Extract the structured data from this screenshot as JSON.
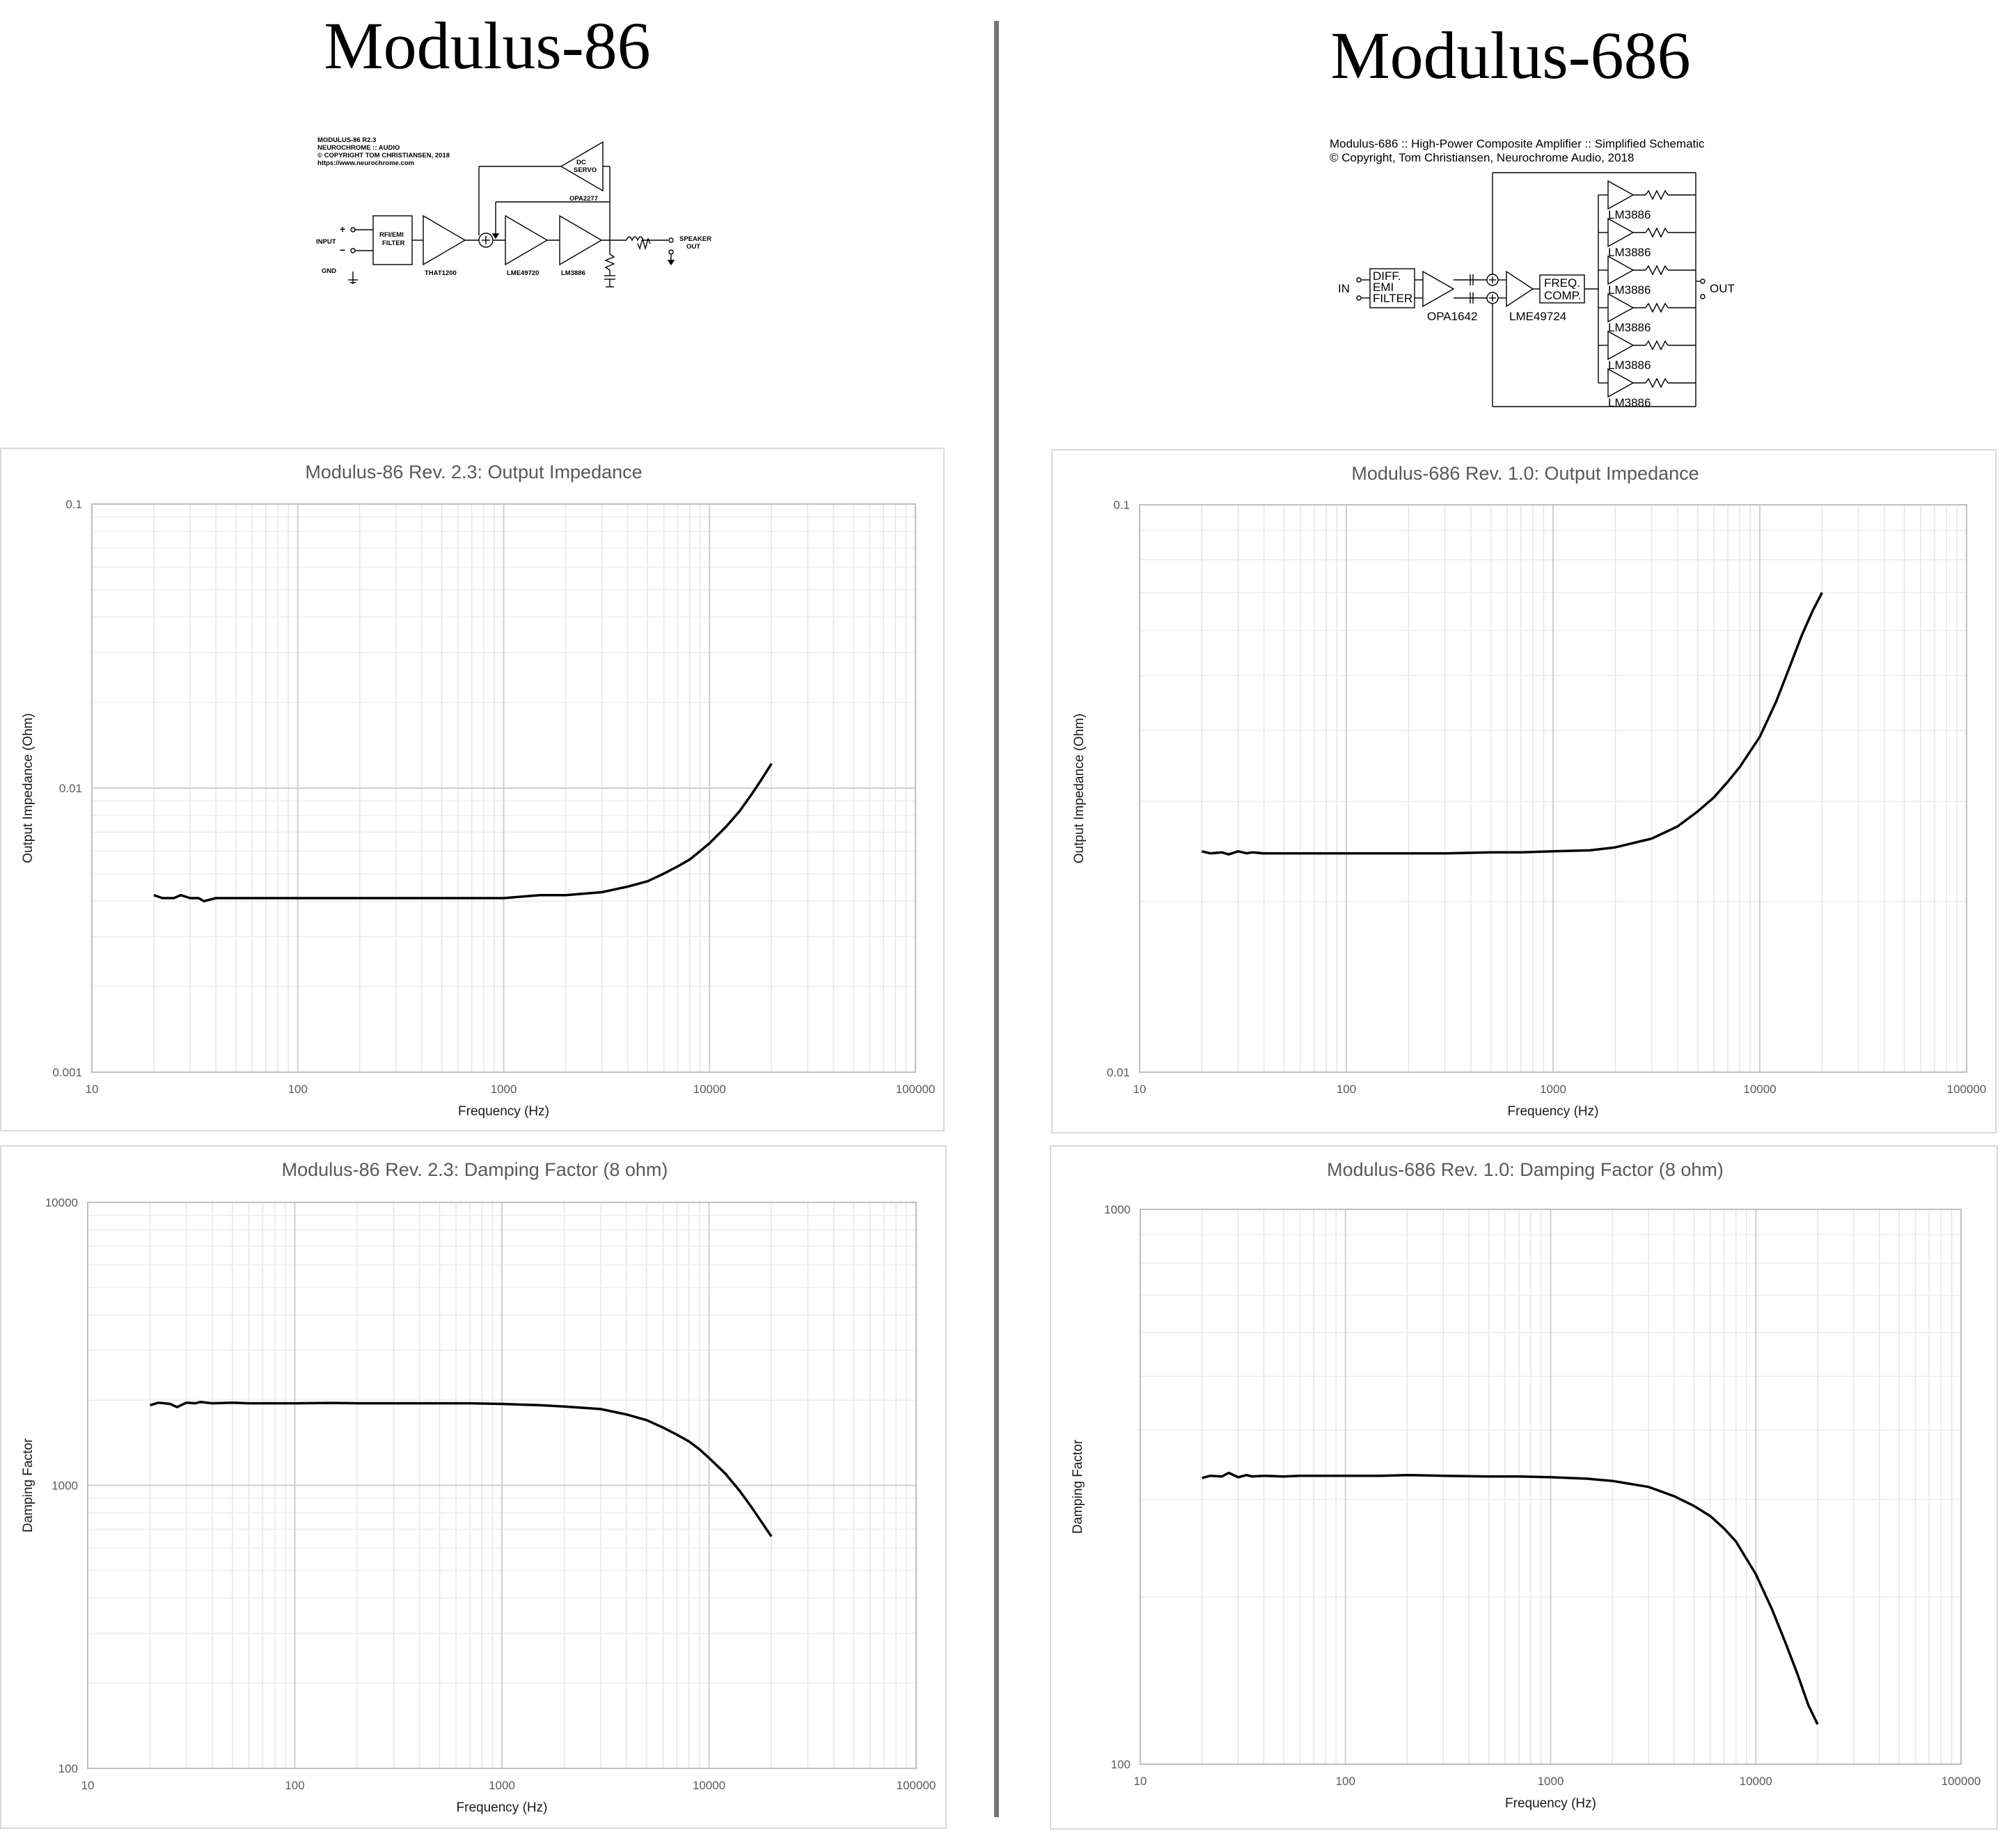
{
  "left": {
    "title": "Modulus-86",
    "schematic": {
      "header": [
        "MODULUS-86 R2.3",
        "NEUROCHROME :: AUDIO",
        "© COPYRIGHT TOM CHRISTIANSEN, 2018",
        "https://www.neurochrome.com"
      ],
      "input": "INPUT",
      "gnd": "GND",
      "plus": "+",
      "minus": "−",
      "filter": [
        "RFI/EMI",
        "FILTER"
      ],
      "stage1": "THAT1200",
      "stage2": "LME49720",
      "stage3": "LM3886",
      "servo": [
        "DC",
        "SERVO"
      ],
      "servo_part": "OPA2277",
      "out": [
        "SPEAKER",
        "OUT"
      ]
    }
  },
  "right": {
    "title": "Modulus-686",
    "schematic": {
      "header": [
        "Modulus-686 :: High-Power Composite Amplifier :: Simplified Schematic",
        "© Copyright, Tom Christiansen, Neurochrome Audio, 2018"
      ],
      "in": "IN",
      "filter": [
        "DIFF.",
        "EMI",
        "FILTER"
      ],
      "stage1": "OPA1642",
      "stage2": "LME49724",
      "freq": [
        "FREQ.",
        "COMP."
      ],
      "out": "OUT",
      "power": "LM3886"
    }
  },
  "chart_data": [
    {
      "type": "line",
      "title": "Modulus-86 Rev. 2.3: Output Impedance",
      "xlabel": "Frequency (Hz)",
      "ylabel": "Output Impedance (Ohm)",
      "xscale": "log",
      "yscale": "log",
      "xlim": [
        10,
        100000
      ],
      "ylim": [
        0.001,
        0.1
      ],
      "xticks": [
        "10",
        "100",
        "1000",
        "10000",
        "100000"
      ],
      "yticks": [
        "0.001",
        "0.01",
        "0.1"
      ],
      "grid": true,
      "x": [
        20,
        22,
        25,
        27,
        30,
        33,
        35,
        40,
        50,
        60,
        80,
        100,
        150,
        200,
        300,
        500,
        700,
        1000,
        1500,
        2000,
        3000,
        4000,
        5000,
        6000,
        7000,
        8000,
        9000,
        10000,
        12000,
        14000,
        16000,
        18000,
        20000
      ],
      "y": [
        0.0042,
        0.0041,
        0.0041,
        0.0042,
        0.0041,
        0.0041,
        0.004,
        0.0041,
        0.0041,
        0.0041,
        0.0041,
        0.0041,
        0.0041,
        0.0041,
        0.0041,
        0.0041,
        0.0041,
        0.0041,
        0.0042,
        0.0042,
        0.0043,
        0.0045,
        0.0047,
        0.005,
        0.0053,
        0.0056,
        0.006,
        0.0064,
        0.0073,
        0.0083,
        0.0095,
        0.0108,
        0.0122
      ]
    },
    {
      "type": "line",
      "title": "Modulus-686 Rev. 1.0: Output Impedance",
      "xlabel": "Frequency (Hz)",
      "ylabel": "Output Impedance (Ohm)",
      "xscale": "log",
      "yscale": "log",
      "xlim": [
        10,
        100000
      ],
      "ylim": [
        0.01,
        0.1
      ],
      "xticks": [
        "10",
        "100",
        "1000",
        "10000",
        "100000"
      ],
      "yticks": [
        "0.01",
        "0.1"
      ],
      "grid": true,
      "x": [
        20,
        22,
        25,
        27,
        30,
        33,
        35,
        40,
        50,
        60,
        80,
        100,
        150,
        200,
        300,
        500,
        700,
        1000,
        1500,
        2000,
        3000,
        4000,
        5000,
        6000,
        7000,
        8000,
        10000,
        12000,
        14000,
        16000,
        18000,
        20000
      ],
      "y": [
        0.0245,
        0.0243,
        0.0244,
        0.0242,
        0.0245,
        0.0243,
        0.0244,
        0.0243,
        0.0243,
        0.0243,
        0.0243,
        0.0243,
        0.0243,
        0.0243,
        0.0243,
        0.0244,
        0.0244,
        0.0245,
        0.0246,
        0.0249,
        0.0258,
        0.0271,
        0.0288,
        0.0305,
        0.0325,
        0.0345,
        0.039,
        0.045,
        0.052,
        0.059,
        0.065,
        0.07
      ]
    },
    {
      "type": "line",
      "title": "Modulus-86 Rev. 2.3: Damping Factor (8 ohm)",
      "xlabel": "Frequency (Hz)",
      "ylabel": "Damping Factor",
      "xscale": "log",
      "yscale": "log",
      "xlim": [
        10,
        100000
      ],
      "ylim": [
        100,
        10000
      ],
      "xticks": [
        "10",
        "100",
        "1000",
        "10000",
        "100000"
      ],
      "yticks": [
        "100",
        "1000",
        "10000"
      ],
      "grid": true,
      "x": [
        20,
        22,
        25,
        27,
        30,
        33,
        35,
        40,
        50,
        60,
        80,
        100,
        150,
        200,
        300,
        500,
        700,
        1000,
        1500,
        2000,
        3000,
        4000,
        5000,
        6000,
        7000,
        8000,
        9000,
        10000,
        12000,
        14000,
        16000,
        18000,
        20000
      ],
      "y": [
        1920,
        1960,
        1940,
        1890,
        1960,
        1950,
        1970,
        1950,
        1960,
        1950,
        1950,
        1950,
        1955,
        1950,
        1950,
        1950,
        1950,
        1940,
        1920,
        1900,
        1860,
        1780,
        1700,
        1600,
        1510,
        1430,
        1340,
        1250,
        1100,
        960,
        840,
        740,
        660
      ]
    },
    {
      "type": "line",
      "title": "Modulus-686 Rev. 1.0: Damping Factor (8 ohm)",
      "xlabel": "Frequency (Hz)",
      "ylabel": "Damping Factor",
      "xscale": "log",
      "yscale": "log",
      "xlim": [
        10,
        100000
      ],
      "ylim": [
        100,
        1000
      ],
      "xticks": [
        "10",
        "100",
        "1000",
        "10000",
        "100000"
      ],
      "yticks": [
        "100",
        "1000"
      ],
      "grid": true,
      "x": [
        20,
        22,
        25,
        27,
        30,
        33,
        35,
        40,
        50,
        60,
        80,
        100,
        150,
        200,
        300,
        500,
        700,
        1000,
        1500,
        2000,
        3000,
        4000,
        5000,
        6000,
        7000,
        8000,
        10000,
        12000,
        14000,
        16000,
        18000,
        20000
      ],
      "y": [
        328,
        331,
        330,
        335,
        329,
        332,
        330,
        331,
        330,
        331,
        331,
        331,
        331,
        332,
        331,
        330,
        330,
        329,
        327,
        324,
        316,
        304,
        292,
        280,
        266,
        252,
        220,
        190,
        165,
        145,
        128,
        118
      ]
    }
  ]
}
